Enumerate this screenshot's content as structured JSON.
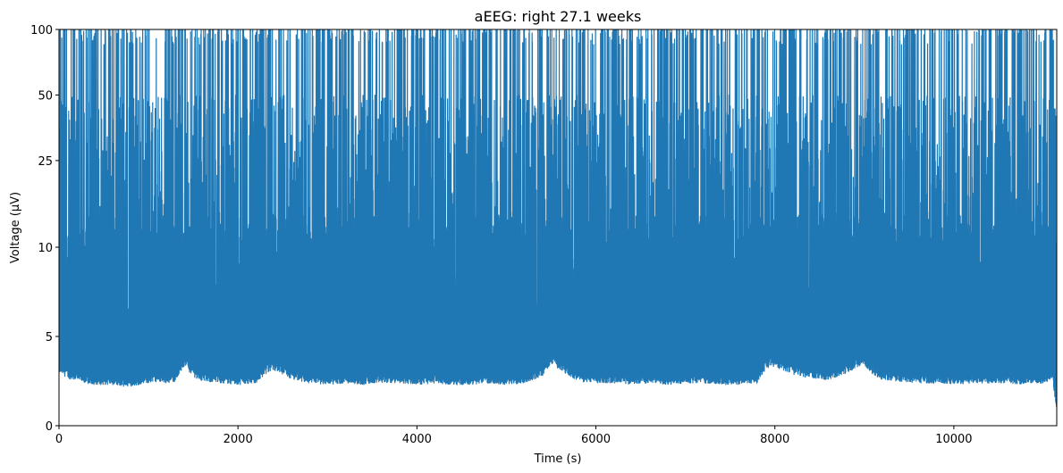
{
  "chart_data": {
    "type": "line",
    "title": "aEEG: right 27.1 weeks",
    "xlabel": "Time (s)",
    "ylabel": "Voltage (µV)",
    "xlim": [
      0,
      11150
    ],
    "ylim": [
      0,
      100
    ],
    "yscale": "aEEG semi-log (linear 0–10, log 10–100)",
    "x_ticks": [
      0,
      2000,
      4000,
      6000,
      8000,
      10000
    ],
    "x_tick_labels": [
      "0",
      "2000",
      "4000",
      "6000",
      "8000",
      "10000"
    ],
    "y_ticks": [
      0,
      5,
      10,
      25,
      50,
      100
    ],
    "y_tick_labels": [
      "0",
      "5",
      "10",
      "25",
      "50",
      "100"
    ],
    "grid": false,
    "series": [
      {
        "color": "#1f77b4",
        "lower_envelope": {
          "x": [
            0,
            100,
            200,
            300,
            400,
            500,
            600,
            700,
            800,
            900,
            1000,
            1100,
            1200,
            1300,
            1400,
            1500,
            1600,
            1800,
            2000,
            2200,
            2300,
            2400,
            2600,
            2800,
            3000,
            3200,
            3400,
            3600,
            3800,
            4000,
            4200,
            4400,
            4600,
            4800,
            5000,
            5200,
            5400,
            5500,
            5600,
            5800,
            6000,
            6200,
            6400,
            6600,
            6800,
            7000,
            7200,
            7400,
            7600,
            7800,
            7900,
            8000,
            8200,
            8400,
            8600,
            8800,
            9000,
            9100,
            9200,
            9400,
            9600,
            9800,
            10000,
            10200,
            10400,
            10600,
            10800,
            11000,
            11100,
            11150
          ],
          "y": [
            3.2,
            2.9,
            2.7,
            2.6,
            2.5,
            2.5,
            2.5,
            2.4,
            2.4,
            2.5,
            2.6,
            2.7,
            2.6,
            2.7,
            3.6,
            3.0,
            2.7,
            2.6,
            2.5,
            2.6,
            3.1,
            3.4,
            2.8,
            2.6,
            2.5,
            2.6,
            2.5,
            2.6,
            2.6,
            2.5,
            2.6,
            2.5,
            2.5,
            2.6,
            2.5,
            2.6,
            3.0,
            3.8,
            3.4,
            2.7,
            2.6,
            2.6,
            2.5,
            2.6,
            2.5,
            2.6,
            2.6,
            2.5,
            2.5,
            2.6,
            3.4,
            3.6,
            3.1,
            2.9,
            2.8,
            3.2,
            3.7,
            3.1,
            2.8,
            2.7,
            2.6,
            2.6,
            2.5,
            2.6,
            2.6,
            2.6,
            2.5,
            2.6,
            2.8,
            1.0
          ]
        },
        "upper_envelope": {
          "x": [
            0,
            100,
            200,
            300,
            400,
            500,
            600,
            700,
            800,
            900,
            1000,
            1100,
            1200,
            1300,
            1400,
            1500,
            1600,
            1800,
            2000,
            2200,
            2300,
            2400,
            2600,
            2800,
            3000,
            3200,
            3400,
            3600,
            3800,
            4000,
            4200,
            4400,
            4600,
            4800,
            5000,
            5200,
            5400,
            5500,
            5600,
            5800,
            6000,
            6200,
            6400,
            6600,
            6800,
            7000,
            7200,
            7400,
            7600,
            7800,
            7900,
            8000,
            8200,
            8400,
            8600,
            8800,
            9000,
            9100,
            9200,
            9400,
            9600,
            9800,
            10000,
            10200,
            10400,
            10600,
            10800,
            11000,
            11100,
            11150
          ],
          "y": [
            100,
            100,
            100,
            100,
            100,
            100,
            100,
            100,
            100,
            100,
            100,
            100,
            100,
            100,
            100,
            100,
            100,
            100,
            100,
            100,
            100,
            100,
            100,
            100,
            100,
            100,
            100,
            100,
            100,
            100,
            100,
            100,
            100,
            100,
            100,
            100,
            100,
            100,
            100,
            100,
            100,
            100,
            100,
            100,
            100,
            100,
            100,
            100,
            100,
            100,
            100,
            100,
            100,
            100,
            100,
            100,
            100,
            100,
            100,
            100,
            100,
            100,
            100,
            100,
            100,
            100,
            100,
            100,
            100,
            10
          ]
        }
      }
    ]
  }
}
